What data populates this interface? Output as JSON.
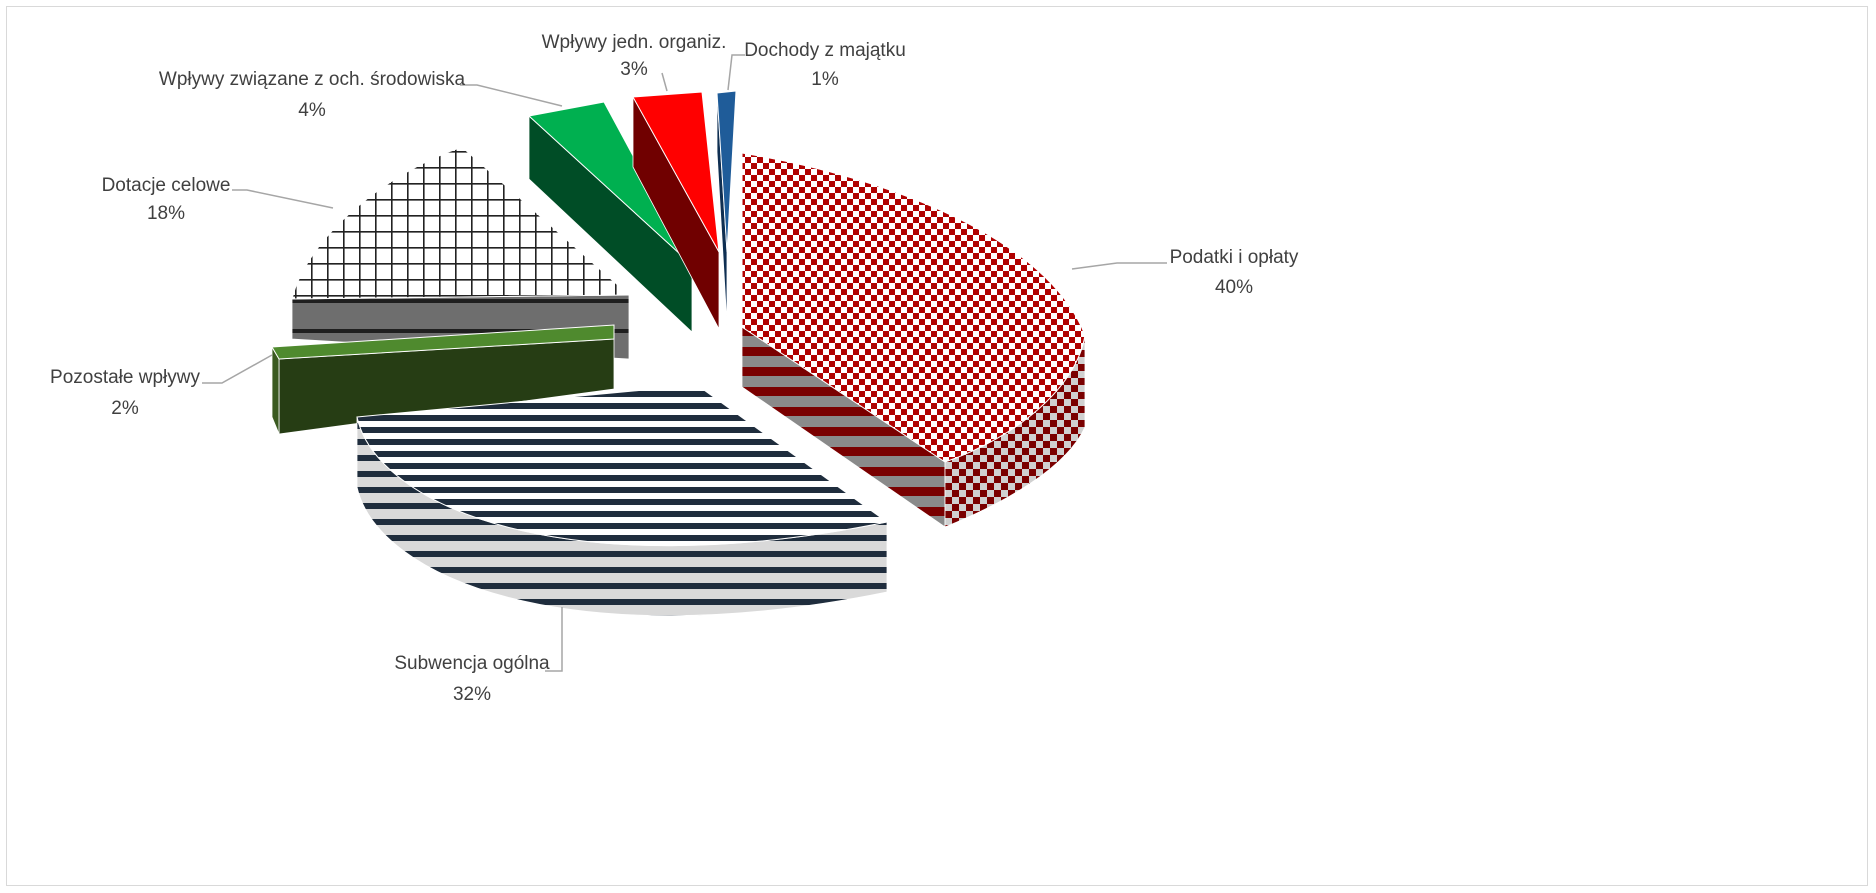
{
  "chart_data": {
    "type": "pie",
    "title": "",
    "legend": "none",
    "data_labels": "category name and percent",
    "slices": [
      {
        "label": "Podatki i opłaty",
        "value": 40,
        "value_label": "40%",
        "color": "#c00000",
        "fill": "red-checkered"
      },
      {
        "label": "Subwencja ogólna",
        "value": 32,
        "value_label": "32%",
        "color": "#1f2d3d",
        "fill": "navy-horizontal-stripes"
      },
      {
        "label": "Pozostałe wpływy",
        "value": 2,
        "value_label": "2%",
        "color": "#4f8a2e",
        "fill": "solid-green"
      },
      {
        "label": "Dotacje celowe",
        "value": 18,
        "value_label": "18%",
        "color": "#404040",
        "fill": "grid-lines"
      },
      {
        "label": "Wpływy związane z och. środowiska",
        "value": 4,
        "value_label": "4%",
        "color": "#00b050",
        "fill": "solid-green"
      },
      {
        "label": "Wpływy jedn. organiz.",
        "value": 3,
        "value_label": "3%",
        "color": "#ff0000",
        "fill": "solid-red"
      },
      {
        "label": "Dochody z majątku",
        "value": 1,
        "value_label": "1%",
        "color": "#1f5c99",
        "fill": "solid-blue"
      }
    ]
  }
}
